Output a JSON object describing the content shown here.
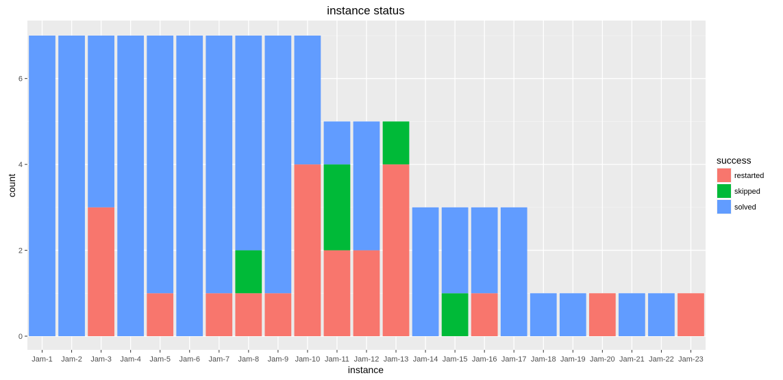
{
  "chart_data": {
    "type": "bar",
    "stacked": true,
    "title": "instance status",
    "xlabel": "instance",
    "ylabel": "count",
    "ylim": [
      0,
      7.35
    ],
    "yticks": [
      0,
      2,
      4,
      6
    ],
    "grid": true,
    "legend_position": "right",
    "legend_title": "success",
    "categories": [
      "Jam-1",
      "Jam-2",
      "Jam-3",
      "Jam-4",
      "Jam-5",
      "Jam-6",
      "Jam-7",
      "Jam-8",
      "Jam-9",
      "Jam-10",
      "Jam-11",
      "Jam-12",
      "Jam-13",
      "Jam-14",
      "Jam-15",
      "Jam-16",
      "Jam-17",
      "Jam-18",
      "Jam-19",
      "Jam-20",
      "Jam-21",
      "Jam-22",
      "Jam-23"
    ],
    "series": [
      {
        "name": "restarted",
        "color": "#F8766D",
        "values": [
          0,
          0,
          3,
          0,
          1,
          0,
          1,
          1,
          1,
          4,
          2,
          2,
          4,
          0,
          0,
          1,
          0,
          0,
          0,
          1,
          0,
          0,
          1
        ]
      },
      {
        "name": "skipped",
        "color": "#00BA38",
        "values": [
          0,
          0,
          0,
          0,
          0,
          0,
          0,
          1,
          0,
          0,
          2,
          0,
          1,
          0,
          1,
          0,
          0,
          0,
          0,
          0,
          0,
          0,
          0
        ]
      },
      {
        "name": "solved",
        "color": "#619CFF",
        "values": [
          7,
          7,
          4,
          7,
          6,
          7,
          6,
          5,
          6,
          3,
          1,
          3,
          0,
          3,
          2,
          2,
          3,
          1,
          1,
          0,
          1,
          1,
          0
        ]
      }
    ]
  }
}
